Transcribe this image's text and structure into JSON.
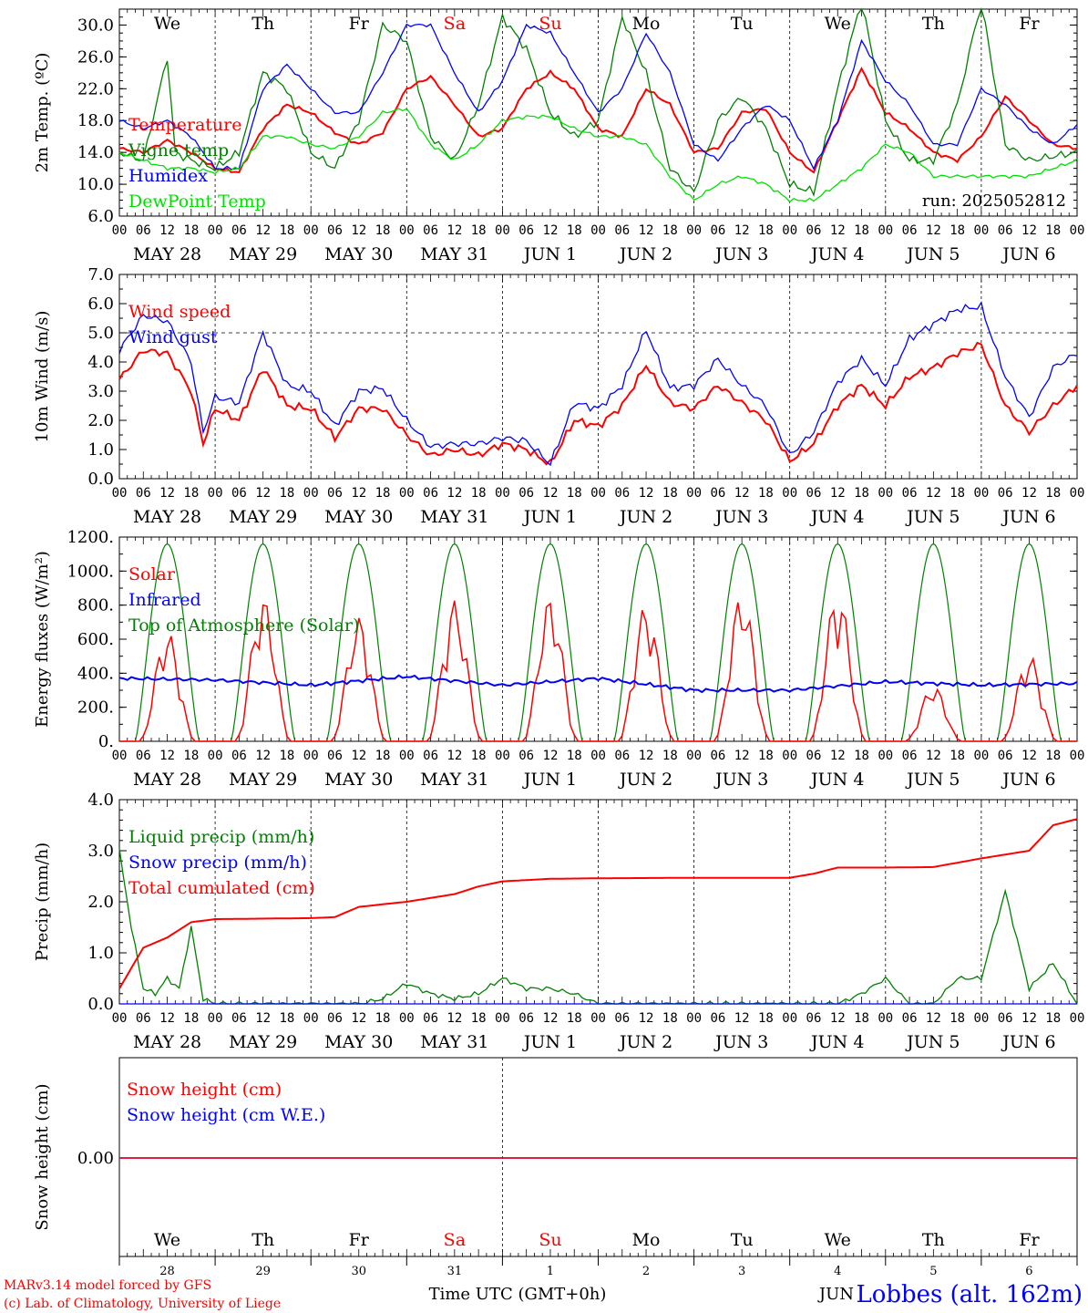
{
  "run_label": "run: 2025052812",
  "credit_line1": "MARv3.14 model forced by GFS",
  "credit_line2": "(c) Lab. of Climatology, University of Liege",
  "station": "Lobbes (alt. 162m)",
  "bottom_axis_title": "Time UTC (GMT+0h)",
  "bottom_month_label": "JUN",
  "colors": {
    "red": "#ff0000",
    "green": "#008000",
    "blue": "#0000ff",
    "lightgreen": "#00e000",
    "grid": "#000000"
  },
  "time_axis": {
    "hour_labels": [
      "00",
      "06",
      "12",
      "18"
    ],
    "date_labels": [
      "MAY 28",
      "MAY 29",
      "MAY 30",
      "MAY 31",
      "JUN  1",
      "JUN  2",
      "JUN  3",
      "JUN  4",
      "JUN  5",
      "JUN  6"
    ],
    "weekdays": [
      {
        "label": "We",
        "weekend": false
      },
      {
        "label": "Th",
        "weekend": false
      },
      {
        "label": "Fr",
        "weekend": false
      },
      {
        "label": "Sa",
        "weekend": true
      },
      {
        "label": "Su",
        "weekend": true
      },
      {
        "label": "Mo",
        "weekend": false
      },
      {
        "label": "Tu",
        "weekend": false
      },
      {
        "label": "We",
        "weekend": false
      },
      {
        "label": "Th",
        "weekend": false
      },
      {
        "label": "Fr",
        "weekend": false
      }
    ],
    "day_numbers": [
      "28",
      "29",
      "30",
      "31",
      "1",
      "2",
      "3",
      "4",
      "5",
      "6"
    ]
  },
  "chart_data": [
    {
      "type": "line",
      "id": "temperature",
      "ylabel": "2m Temp. (ºC)",
      "ylim": [
        6,
        32
      ],
      "yticks": [
        "6.0",
        "10.0",
        "14.0",
        "18.0",
        "22.0",
        "26.0",
        "30.0"
      ],
      "x_unit": "hours since May 28 00 UTC",
      "series": [
        {
          "name": "Temperature",
          "color": "#ff0000",
          "x": [
            0,
            6,
            12,
            18,
            24,
            30,
            36,
            42,
            48,
            54,
            60,
            66,
            72,
            78,
            84,
            90,
            96,
            102,
            108,
            114,
            120,
            126,
            132,
            138,
            144,
            150,
            156,
            162,
            168,
            174,
            180,
            186,
            192,
            198,
            204,
            210,
            216,
            222,
            228,
            234,
            240
          ],
          "y": [
            14.5,
            14,
            15.5,
            14,
            12,
            11.5,
            17,
            20,
            19,
            16.5,
            15,
            16.5,
            22,
            23.5,
            20,
            16,
            17,
            22,
            24,
            22,
            17,
            16,
            22,
            20,
            14,
            14.5,
            19,
            19.5,
            14,
            11.5,
            18,
            24.5,
            19,
            17,
            14,
            13,
            16,
            21,
            18,
            15,
            14.5
          ]
        },
        {
          "name": "Vigne temp",
          "color": "#008000",
          "x": [
            0,
            6,
            12,
            14,
            18,
            24,
            30,
            36,
            42,
            48,
            54,
            60,
            66,
            72,
            78,
            84,
            90,
            96,
            102,
            108,
            114,
            120,
            126,
            132,
            138,
            144,
            150,
            156,
            162,
            168,
            174,
            180,
            186,
            192,
            198,
            204,
            210,
            216,
            222,
            228,
            234,
            240
          ],
          "y": [
            14,
            13,
            26,
            14,
            13,
            12,
            14,
            24,
            22,
            14,
            12,
            18,
            30,
            28,
            16,
            13,
            20,
            31,
            27,
            19,
            16,
            18,
            31,
            24,
            12,
            9,
            18,
            21,
            17,
            10,
            9,
            22,
            33,
            18,
            13,
            13,
            20,
            33,
            15,
            13,
            13.5,
            14
          ]
        },
        {
          "name": "Humidex",
          "color": "#0000ff",
          "x": [
            0,
            6,
            12,
            18,
            24,
            30,
            36,
            42,
            48,
            54,
            60,
            66,
            72,
            78,
            84,
            90,
            96,
            102,
            108,
            114,
            120,
            126,
            132,
            138,
            144,
            150,
            156,
            162,
            168,
            174,
            180,
            186,
            192,
            198,
            204,
            210,
            216,
            222,
            228,
            234,
            240
          ],
          "y": [
            18,
            17,
            18,
            16,
            12,
            12,
            22,
            25,
            22,
            19,
            19,
            24,
            30,
            30,
            24,
            19,
            23,
            30,
            29,
            24,
            19,
            22,
            29,
            24,
            15,
            13,
            17,
            20,
            18,
            12,
            18,
            28,
            23,
            20,
            15,
            15,
            22,
            20,
            17,
            15,
            17.5
          ]
        },
        {
          "name": "DewPoint Temp",
          "color": "#00e000",
          "x": [
            0,
            6,
            12,
            18,
            24,
            30,
            36,
            42,
            48,
            54,
            60,
            66,
            72,
            78,
            84,
            90,
            96,
            102,
            108,
            114,
            120,
            126,
            132,
            138,
            144,
            150,
            156,
            162,
            168,
            174,
            180,
            186,
            192,
            198,
            204,
            210,
            216,
            222,
            228,
            234,
            240
          ],
          "y": [
            14,
            13,
            12,
            12,
            11.5,
            12,
            16,
            16,
            15,
            14.5,
            16,
            19,
            19.5,
            15,
            13,
            15,
            18,
            18.5,
            18.5,
            17,
            16,
            16,
            15,
            11,
            8,
            10,
            11,
            10,
            8,
            8,
            10,
            12,
            15,
            14,
            11,
            11,
            11,
            11,
            11,
            12,
            13
          ]
        }
      ]
    },
    {
      "type": "line",
      "id": "wind",
      "ylabel": "10m Wind (m/s)",
      "ylim": [
        0,
        7
      ],
      "yticks": [
        "0.0",
        "1.0",
        "2.0",
        "3.0",
        "4.0",
        "5.0",
        "6.0",
        "7.0"
      ],
      "reference_line": 5.0,
      "series": [
        {
          "name": "Wind speed",
          "color": "#ff0000",
          "x": [
            0,
            6,
            12,
            18,
            21,
            24,
            30,
            36,
            42,
            48,
            54,
            60,
            66,
            72,
            78,
            84,
            90,
            96,
            102,
            108,
            114,
            120,
            126,
            132,
            138,
            144,
            150,
            156,
            162,
            168,
            174,
            180,
            186,
            192,
            198,
            204,
            210,
            216,
            222,
            228,
            234,
            240
          ],
          "y": [
            3.4,
            4.4,
            4.3,
            3.0,
            1.2,
            2.4,
            2.0,
            3.8,
            2.5,
            2.4,
            1.4,
            2.4,
            2.4,
            1.5,
            0.8,
            1.0,
            0.8,
            1.2,
            1.0,
            0.5,
            2.0,
            1.8,
            2.5,
            3.9,
            2.6,
            2.4,
            3.2,
            2.6,
            2.0,
            0.6,
            1.2,
            2.5,
            3.2,
            2.5,
            3.5,
            3.8,
            4.3,
            4.6,
            2.5,
            1.6,
            2.5,
            3.2
          ]
        },
        {
          "name": "Wind gust",
          "color": "#0000ff",
          "x": [
            0,
            6,
            12,
            18,
            21,
            24,
            30,
            36,
            42,
            48,
            54,
            60,
            66,
            72,
            78,
            84,
            90,
            96,
            102,
            108,
            114,
            120,
            126,
            132,
            138,
            144,
            150,
            156,
            162,
            168,
            174,
            180,
            186,
            192,
            198,
            204,
            210,
            216,
            222,
            228,
            234,
            240
          ],
          "y": [
            4.4,
            5.6,
            5.4,
            4.0,
            1.6,
            2.8,
            2.6,
            5.0,
            3.2,
            3.0,
            1.8,
            3.0,
            3.1,
            2.0,
            1.1,
            1.2,
            1.2,
            1.4,
            1.3,
            0.5,
            2.6,
            2.4,
            3.2,
            5.1,
            3.1,
            3.2,
            4.1,
            3.2,
            2.5,
            0.8,
            1.6,
            3.3,
            4.1,
            3.2,
            4.8,
            5.3,
            5.8,
            5.9,
            3.5,
            2.1,
            3.8,
            4.3
          ]
        }
      ]
    },
    {
      "type": "line",
      "id": "energy",
      "ylabel": "Energy fluxes (W/m²)",
      "ylim": [
        0,
        1200
      ],
      "yticks": [
        "0.",
        "200.",
        "400.",
        "600.",
        "800.",
        "1000.",
        "1200."
      ],
      "series": [
        {
          "name": "Solar",
          "color": "#ff0000",
          "daily_peaks": [
            650,
            850,
            730,
            830,
            850,
            810,
            880,
            890,
            330,
            510
          ]
        },
        {
          "name": "Infrared",
          "color": "#0000ff",
          "x": [
            0,
            24,
            48,
            72,
            96,
            120,
            144,
            168,
            192,
            216,
            240
          ],
          "y": [
            370,
            360,
            330,
            380,
            330,
            370,
            300,
            300,
            350,
            330,
            340
          ]
        },
        {
          "name": "Top of Atmosphere (Solar)",
          "color": "#008000",
          "daily_peak": 1160
        }
      ]
    },
    {
      "type": "line",
      "id": "precip",
      "ylabel": "Precip (mm/h)",
      "ylim": [
        0,
        4
      ],
      "yticks": [
        "0.0",
        "1.0",
        "2.0",
        "3.0",
        "4.0"
      ],
      "series": [
        {
          "name": "Liquid precip (mm/h)",
          "color": "#008000",
          "x": [
            0,
            3,
            6,
            9,
            12,
            15,
            18,
            21,
            24,
            60,
            66,
            72,
            78,
            84,
            90,
            96,
            102,
            108,
            114,
            120,
            180,
            186,
            192,
            198,
            204,
            210,
            216,
            222,
            228,
            234,
            240
          ],
          "y": [
            3.0,
            1.5,
            0.3,
            0.2,
            0.5,
            0.3,
            1.5,
            0.1,
            0,
            0,
            0.1,
            0.4,
            0.2,
            0.1,
            0.2,
            0.5,
            0.3,
            0.3,
            0.2,
            0,
            0,
            0.2,
            0.5,
            0,
            0,
            0.5,
            0.5,
            2.2,
            0.3,
            0.8,
            0
          ]
        },
        {
          "name": "Snow precip (mm/h)",
          "color": "#0000ff",
          "x": [
            0,
            240
          ],
          "y": [
            0,
            0
          ]
        },
        {
          "name": "Total cumulated (cm)",
          "color": "#ff0000",
          "x": [
            0,
            6,
            12,
            18,
            24,
            48,
            54,
            60,
            72,
            84,
            90,
            96,
            108,
            120,
            144,
            168,
            174,
            180,
            192,
            204,
            216,
            228,
            234,
            240
          ],
          "y": [
            0.3,
            1.1,
            1.3,
            1.6,
            1.66,
            1.68,
            1.7,
            1.9,
            2.0,
            2.15,
            2.3,
            2.4,
            2.45,
            2.46,
            2.47,
            2.47,
            2.55,
            2.67,
            2.67,
            2.68,
            2.85,
            3.0,
            3.5,
            3.62
          ]
        }
      ]
    },
    {
      "type": "line",
      "id": "snow",
      "ylabel": "Snow height (cm)",
      "yticks": [
        "0.00"
      ],
      "series": [
        {
          "name": "Snow height (cm)",
          "color": "#ff0000",
          "x": [
            0,
            240
          ],
          "y": [
            0,
            0
          ]
        },
        {
          "name": "Snow height (cm W.E.)",
          "color": "#0000ff",
          "x": [
            0,
            240
          ],
          "y": [
            0,
            0
          ]
        }
      ]
    }
  ]
}
